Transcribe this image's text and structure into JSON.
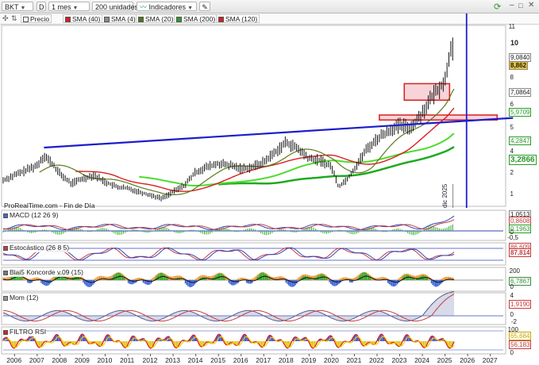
{
  "toolbar": {
    "symbol": "BKT",
    "symbol_menu": "D",
    "period": "1 mes",
    "units": "200 unidades",
    "indicators": "Indicadores"
  },
  "legend": [
    {
      "label": "Precio",
      "color": "#ffffff"
    },
    {
      "label": "SMA (40)",
      "color": "#d81f1f"
    },
    {
      "label": "SMA (4)",
      "color": "#8a8a8a"
    },
    {
      "label": "SMA (20)",
      "color": "#4a7a18"
    },
    {
      "label": "SMA (200)",
      "color": "#2e9a2e"
    },
    {
      "label": "SMA (120)",
      "color": "#d81f1f"
    }
  ],
  "price_axis": [
    "11",
    "10",
    "9,0840",
    "8,862",
    "8",
    "7,0864",
    "6",
    "5,9709",
    "5",
    "4,2847",
    "4",
    "3,2866",
    "3",
    "2",
    "1"
  ],
  "footer": "ProRealTime.com - Fin de Día",
  "vline_label": "dic 2025",
  "panels": {
    "macd": {
      "label": "MACD (12 26 9)",
      "values": [
        "1,0513",
        "0,8608",
        "0,1963",
        "0",
        "-0,5"
      ]
    },
    "stoch": {
      "label": "Estocástico (26 8 5)",
      "values": [
        "86,609",
        "87,814"
      ]
    },
    "blai": {
      "label": "Blai5 Koncorde v.09 (15)",
      "values": [
        "200",
        "6,7867",
        "0"
      ]
    },
    "mom": {
      "label": "Mom (12)",
      "values": [
        "4",
        "1,9190",
        "0",
        "-2"
      ]
    },
    "rsi": {
      "label": "FILTRO RSI",
      "values": [
        "100",
        "65,684",
        "56,183",
        "0"
      ]
    }
  },
  "x_axis": [
    "2006",
    "2007",
    "2008",
    "2009",
    "2010",
    "2011",
    "2012",
    "2013",
    "2014",
    "2015",
    "2016",
    "2017",
    "2018",
    "2019",
    "2020",
    "2021",
    "2022",
    "2023",
    "2024",
    "2025",
    "2026",
    "2027"
  ],
  "chart_data": {
    "type": "line",
    "title": "BKT",
    "x_range": [
      2005.5,
      2027.5
    ],
    "y_range_price": [
      0.5,
      11.5
    ],
    "price_series": [
      [
        2005.5,
        2.1
      ],
      [
        2006.0,
        2.4
      ],
      [
        2006.5,
        2.7
      ],
      [
        2007.0,
        3.0
      ],
      [
        2007.3,
        3.6
      ],
      [
        2007.6,
        3.2
      ],
      [
        2008.0,
        2.5
      ],
      [
        2008.5,
        1.9
      ],
      [
        2009.0,
        2.2
      ],
      [
        2009.5,
        2.4
      ],
      [
        2010.0,
        2.0
      ],
      [
        2010.5,
        1.7
      ],
      [
        2011.0,
        1.6
      ],
      [
        2011.5,
        1.4
      ],
      [
        2012.0,
        1.2
      ],
      [
        2012.5,
        1.0
      ],
      [
        2013.0,
        1.4
      ],
      [
        2013.5,
        1.8
      ],
      [
        2014.0,
        2.6
      ],
      [
        2014.5,
        2.9
      ],
      [
        2015.0,
        3.1
      ],
      [
        2015.5,
        3.0
      ],
      [
        2016.0,
        2.8
      ],
      [
        2016.5,
        2.9
      ],
      [
        2017.0,
        3.2
      ],
      [
        2017.5,
        3.8
      ],
      [
        2018.0,
        4.4
      ],
      [
        2018.5,
        4.0
      ],
      [
        2019.0,
        3.4
      ],
      [
        2019.5,
        3.3
      ],
      [
        2020.0,
        2.9
      ],
      [
        2020.3,
        1.7
      ],
      [
        2020.7,
        2.2
      ],
      [
        2021.0,
        2.8
      ],
      [
        2021.5,
        3.9
      ],
      [
        2022.0,
        4.6
      ],
      [
        2022.5,
        5.1
      ],
      [
        2023.0,
        5.4
      ],
      [
        2023.5,
        5.3
      ],
      [
        2024.0,
        6.2
      ],
      [
        2024.5,
        7.3
      ],
      [
        2025.0,
        8.1
      ],
      [
        2025.3,
        10.6
      ],
      [
        2025.4,
        9.1
      ]
    ],
    "trendline": [
      [
        2007.3,
        3.5
      ],
      [
        2025.9,
        5.97
      ]
    ],
    "zones": [
      {
        "x0": 2023.2,
        "x1": 2025.2,
        "y0": 6.95,
        "y1": 7.95
      },
      {
        "x0": 2022.1,
        "x1": 2027.3,
        "y0": 5.75,
        "y1": 6.05
      }
    ],
    "vertical_marker_x": 2025.95
  }
}
